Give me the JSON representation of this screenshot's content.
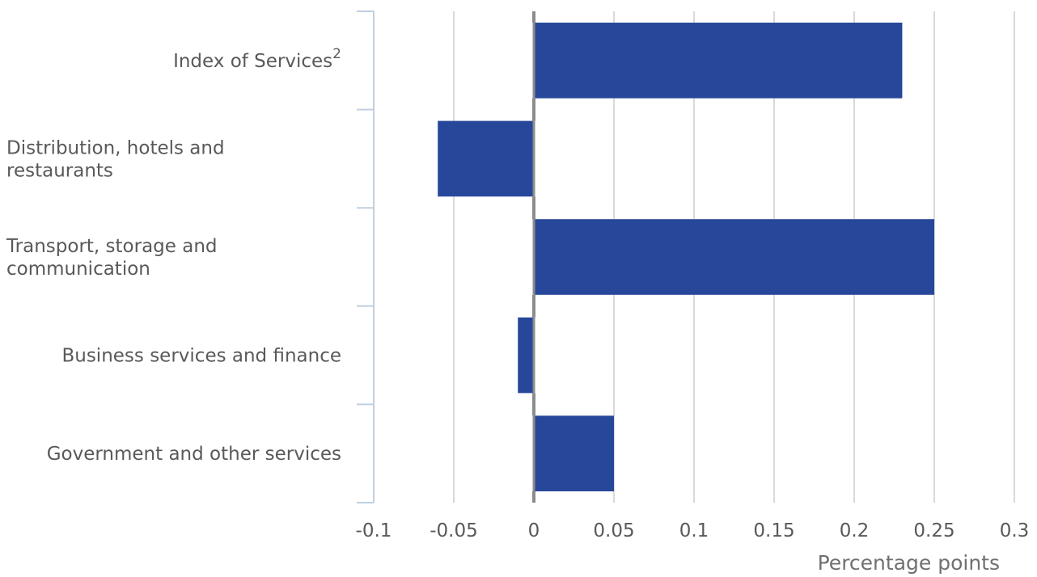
{
  "chart_data": {
    "type": "bar",
    "orientation": "horizontal",
    "categories": [
      [
        "Index of Services"
      ],
      [
        "Distribution, hotels and",
        "restaurants"
      ],
      [
        "Transport, storage and",
        "communication"
      ],
      [
        "Business services and finance"
      ],
      [
        "Government and other services"
      ]
    ],
    "category_superscripts": [
      "2",
      "",
      "",
      "",
      ""
    ],
    "values": [
      0.23,
      -0.06,
      0.25,
      -0.01,
      0.05
    ],
    "xlabel": "Percentage points",
    "xlim": [
      -0.1,
      0.3
    ],
    "xticks": [
      -0.1,
      -0.05,
      0,
      0.05,
      0.1,
      0.15,
      0.2,
      0.25,
      0.3
    ],
    "xtick_labels": [
      "-0.1",
      "-0.05",
      "0",
      "0.05",
      "0.1",
      "0.15",
      "0.2",
      "0.25",
      "0.3"
    ],
    "grid": true,
    "colors": {
      "bar": "#27479a",
      "grid": "#d9d9d9",
      "zero_line": "#8c8c8c",
      "category_axis": "#bfcfe0",
      "text": "#595959"
    }
  }
}
